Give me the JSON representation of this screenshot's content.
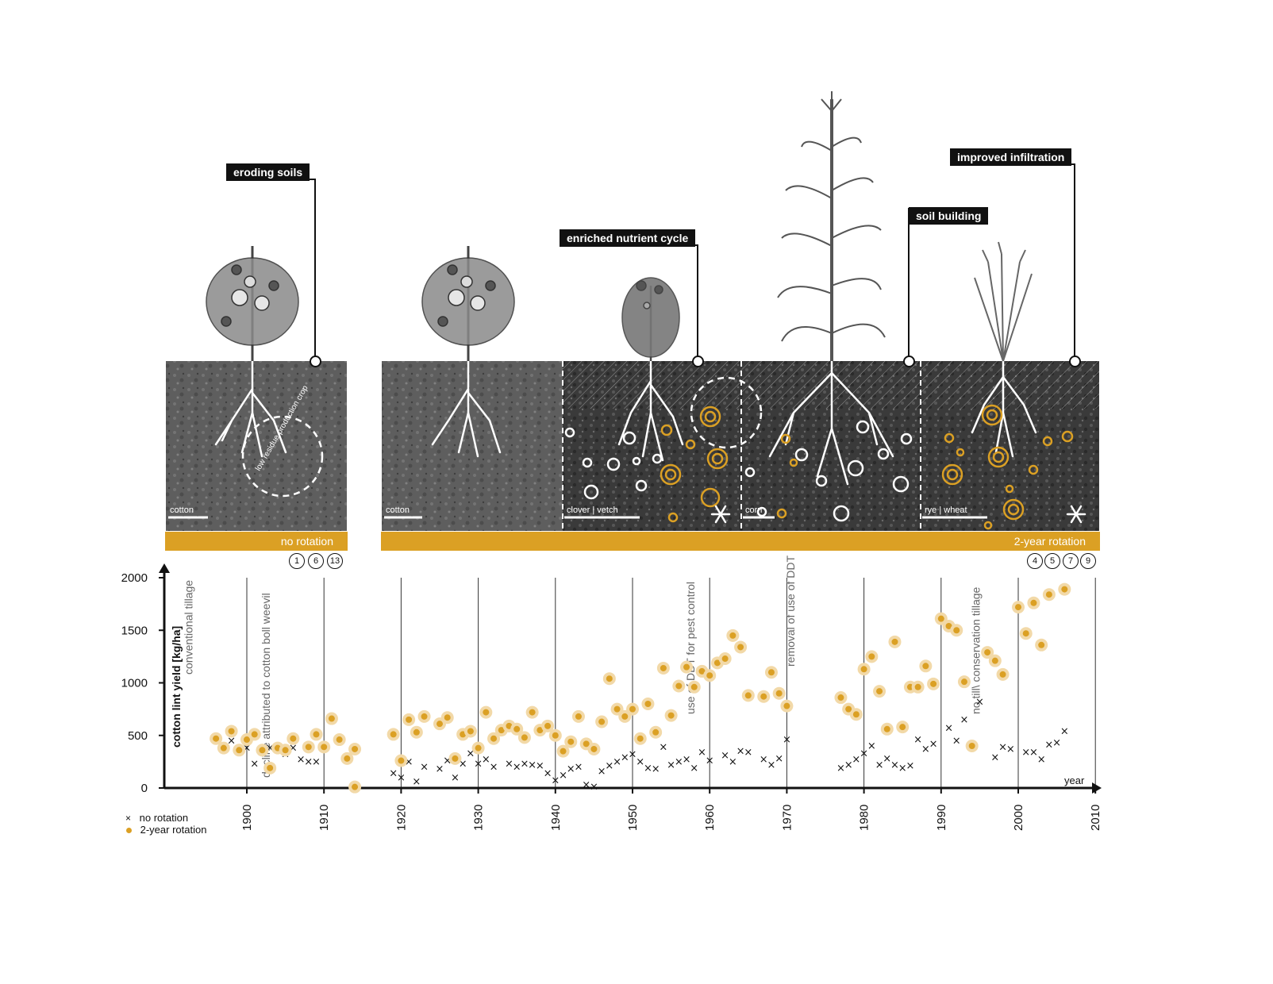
{
  "callouts": {
    "eroding": "eroding soils",
    "nutrient": "enriched nutrient cycle",
    "building": "soil building",
    "infiltration": "improved infiltration"
  },
  "panels": {
    "cotton_a": "cotton",
    "cotton_b": "cotton",
    "clover": "clover | vetch",
    "corn": "corn",
    "rye": "rye | wheat",
    "residue_arc": "low residue production crop"
  },
  "bars": {
    "no_rotation": "no rotation",
    "two_year": "2-year rotation"
  },
  "refs_left": [
    "1",
    "6",
    "13"
  ],
  "refs_right": [
    "4",
    "5",
    "7",
    "9"
  ],
  "legend": {
    "no_rotation": "no rotation",
    "two_year": "2-year rotation"
  },
  "colors": {
    "accent": "#dba024",
    "accent_light": "#f2d9a8",
    "ink": "#111111",
    "soil": "#5a5a5a"
  },
  "chart_data": {
    "type": "scatter",
    "title": "",
    "ylabel": "cotton lint yield  [kg/ha]",
    "xlabel": "year",
    "xlim": [
      1890,
      2011
    ],
    "ylim": [
      0,
      2000
    ],
    "xticks": [
      1900,
      1910,
      1920,
      1930,
      1940,
      1950,
      1960,
      1970,
      1980,
      1990,
      2000,
      2010
    ],
    "yticks": [
      0,
      500,
      1000,
      1500,
      2000
    ],
    "grid": "vertical lines at decades",
    "legend_position": "bottom-left",
    "annotations": [
      {
        "year": 1893,
        "text": "conventional tillage"
      },
      {
        "year": 1903,
        "text": "decline attributed to cotton boll weevil"
      },
      {
        "year": 1958,
        "text": "use of DDT for pest control"
      },
      {
        "year": 1971,
        "text": "removal of use of DDT"
      },
      {
        "year": 1995,
        "text": "no till\\ conservation tillage"
      }
    ],
    "series": [
      {
        "name": "no rotation",
        "marker": "x",
        "points": [
          [
            1896,
            440
          ],
          [
            1898,
            450
          ],
          [
            1900,
            380
          ],
          [
            1901,
            230
          ],
          [
            1903,
            380
          ],
          [
            1904,
            380
          ],
          [
            1905,
            320
          ],
          [
            1906,
            380
          ],
          [
            1907,
            270
          ],
          [
            1908,
            250
          ],
          [
            1909,
            250
          ],
          [
            1919,
            140
          ],
          [
            1920,
            100
          ],
          [
            1921,
            250
          ],
          [
            1922,
            60
          ],
          [
            1923,
            200
          ],
          [
            1925,
            180
          ],
          [
            1926,
            260
          ],
          [
            1927,
            100
          ],
          [
            1928,
            230
          ],
          [
            1929,
            330
          ],
          [
            1930,
            230
          ],
          [
            1931,
            270
          ],
          [
            1932,
            200
          ],
          [
            1934,
            230
          ],
          [
            1935,
            200
          ],
          [
            1936,
            230
          ],
          [
            1937,
            220
          ],
          [
            1938,
            210
          ],
          [
            1939,
            140
          ],
          [
            1940,
            70
          ],
          [
            1941,
            120
          ],
          [
            1942,
            180
          ],
          [
            1943,
            200
          ],
          [
            1944,
            30
          ],
          [
            1945,
            10
          ],
          [
            1946,
            160
          ],
          [
            1947,
            210
          ],
          [
            1948,
            250
          ],
          [
            1949,
            290
          ],
          [
            1950,
            320
          ],
          [
            1951,
            250
          ],
          [
            1952,
            190
          ],
          [
            1953,
            180
          ],
          [
            1954,
            390
          ],
          [
            1955,
            220
          ],
          [
            1956,
            250
          ],
          [
            1957,
            270
          ],
          [
            1958,
            190
          ],
          [
            1959,
            340
          ],
          [
            1960,
            260
          ],
          [
            1962,
            310
          ],
          [
            1963,
            250
          ],
          [
            1964,
            350
          ],
          [
            1965,
            340
          ],
          [
            1967,
            270
          ],
          [
            1968,
            220
          ],
          [
            1969,
            280
          ],
          [
            1970,
            460
          ],
          [
            1977,
            190
          ],
          [
            1978,
            220
          ],
          [
            1979,
            270
          ],
          [
            1980,
            330
          ],
          [
            1981,
            400
          ],
          [
            1982,
            220
          ],
          [
            1983,
            280
          ],
          [
            1984,
            220
          ],
          [
            1985,
            190
          ],
          [
            1986,
            210
          ],
          [
            1987,
            460
          ],
          [
            1988,
            370
          ],
          [
            1989,
            420
          ],
          [
            1991,
            570
          ],
          [
            1992,
            450
          ],
          [
            1993,
            650
          ],
          [
            1995,
            820
          ],
          [
            1997,
            290
          ],
          [
            1998,
            390
          ],
          [
            1999,
            370
          ],
          [
            2001,
            340
          ],
          [
            2002,
            340
          ],
          [
            2003,
            270
          ],
          [
            2004,
            410
          ],
          [
            2005,
            430
          ],
          [
            2006,
            540
          ]
        ]
      },
      {
        "name": "2-year rotation",
        "marker": "dot",
        "points": [
          [
            1896,
            470
          ],
          [
            1897,
            380
          ],
          [
            1898,
            540
          ],
          [
            1899,
            360
          ],
          [
            1900,
            460
          ],
          [
            1901,
            510
          ],
          [
            1902,
            360
          ],
          [
            1903,
            190
          ],
          [
            1904,
            380
          ],
          [
            1905,
            360
          ],
          [
            1906,
            470
          ],
          [
            1908,
            390
          ],
          [
            1909,
            510
          ],
          [
            1910,
            390
          ],
          [
            1911,
            660
          ],
          [
            1912,
            460
          ],
          [
            1913,
            280
          ],
          [
            1914,
            10
          ],
          [
            1914,
            370
          ],
          [
            1919,
            510
          ],
          [
            1920,
            260
          ],
          [
            1921,
            650
          ],
          [
            1922,
            530
          ],
          [
            1923,
            680
          ],
          [
            1925,
            610
          ],
          [
            1926,
            670
          ],
          [
            1927,
            280
          ],
          [
            1928,
            510
          ],
          [
            1929,
            540
          ],
          [
            1930,
            380
          ],
          [
            1931,
            720
          ],
          [
            1932,
            470
          ],
          [
            1933,
            550
          ],
          [
            1934,
            590
          ],
          [
            1935,
            560
          ],
          [
            1936,
            480
          ],
          [
            1937,
            720
          ],
          [
            1938,
            550
          ],
          [
            1939,
            590
          ],
          [
            1940,
            500
          ],
          [
            1941,
            350
          ],
          [
            1942,
            440
          ],
          [
            1943,
            680
          ],
          [
            1944,
            420
          ],
          [
            1945,
            370
          ],
          [
            1946,
            630
          ],
          [
            1947,
            1040
          ],
          [
            1948,
            750
          ],
          [
            1949,
            680
          ],
          [
            1950,
            750
          ],
          [
            1951,
            470
          ],
          [
            1952,
            800
          ],
          [
            1953,
            530
          ],
          [
            1954,
            1140
          ],
          [
            1955,
            690
          ],
          [
            1956,
            970
          ],
          [
            1957,
            1150
          ],
          [
            1958,
            960
          ],
          [
            1959,
            1110
          ],
          [
            1960,
            1070
          ],
          [
            1961,
            1190
          ],
          [
            1962,
            1230
          ],
          [
            1963,
            1450
          ],
          [
            1964,
            1340
          ],
          [
            1965,
            880
          ],
          [
            1967,
            870
          ],
          [
            1968,
            1100
          ],
          [
            1969,
            900
          ],
          [
            1970,
            780
          ],
          [
            1977,
            860
          ],
          [
            1978,
            750
          ],
          [
            1979,
            700
          ],
          [
            1980,
            1130
          ],
          [
            1981,
            1250
          ],
          [
            1982,
            920
          ],
          [
            1983,
            560
          ],
          [
            1984,
            1390
          ],
          [
            1985,
            580
          ],
          [
            1986,
            960
          ],
          [
            1987,
            960
          ],
          [
            1988,
            1160
          ],
          [
            1989,
            990
          ],
          [
            1990,
            1610
          ],
          [
            1991,
            1540
          ],
          [
            1992,
            1500
          ],
          [
            1993,
            1010
          ],
          [
            1994,
            400
          ],
          [
            1996,
            1290
          ],
          [
            1997,
            1210
          ],
          [
            1998,
            1080
          ],
          [
            2000,
            1720
          ],
          [
            2001,
            1470
          ],
          [
            2002,
            1760
          ],
          [
            2003,
            1360
          ],
          [
            2004,
            1840
          ],
          [
            2006,
            1890
          ]
        ]
      }
    ]
  }
}
